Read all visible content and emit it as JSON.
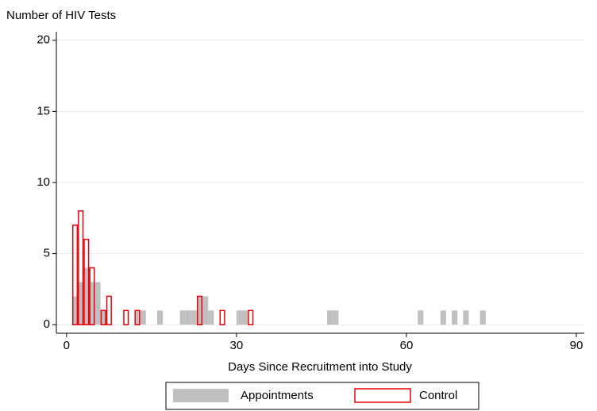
{
  "chart_data": {
    "type": "histogram",
    "ylabel": "Number of HIV Tests",
    "xlabel": "Days Since Recruitment into Study",
    "xlim": [
      -1.8,
      91.4
    ],
    "xticks": [
      0,
      30,
      60,
      90
    ],
    "ylim": [
      -0.6,
      20.6
    ],
    "yticks": [
      0,
      5,
      10,
      15,
      20
    ],
    "bin_width": 1,
    "grid": true,
    "legend": "bottom",
    "series": [
      {
        "name": "Appointments",
        "color": "#c0c0c0",
        "style": "filled",
        "x": [
          1,
          2,
          3,
          4,
          5,
          6,
          12,
          13,
          16,
          20,
          21,
          22,
          23,
          24,
          25,
          30,
          31,
          46,
          47,
          62,
          66,
          68,
          70,
          73
        ],
        "values": [
          2,
          3,
          4,
          3,
          3,
          1,
          1,
          1,
          1,
          1,
          1,
          1,
          2,
          2,
          1,
          1,
          1,
          1,
          1,
          1,
          1,
          1,
          1,
          1
        ]
      },
      {
        "name": "Control",
        "color": "#e8000b",
        "style": "outline",
        "x": [
          1,
          2,
          3,
          4,
          6,
          7,
          10,
          12,
          23,
          27,
          32
        ],
        "values": [
          7,
          8,
          6,
          4,
          1,
          2,
          1,
          1,
          2,
          1,
          1
        ]
      }
    ]
  }
}
